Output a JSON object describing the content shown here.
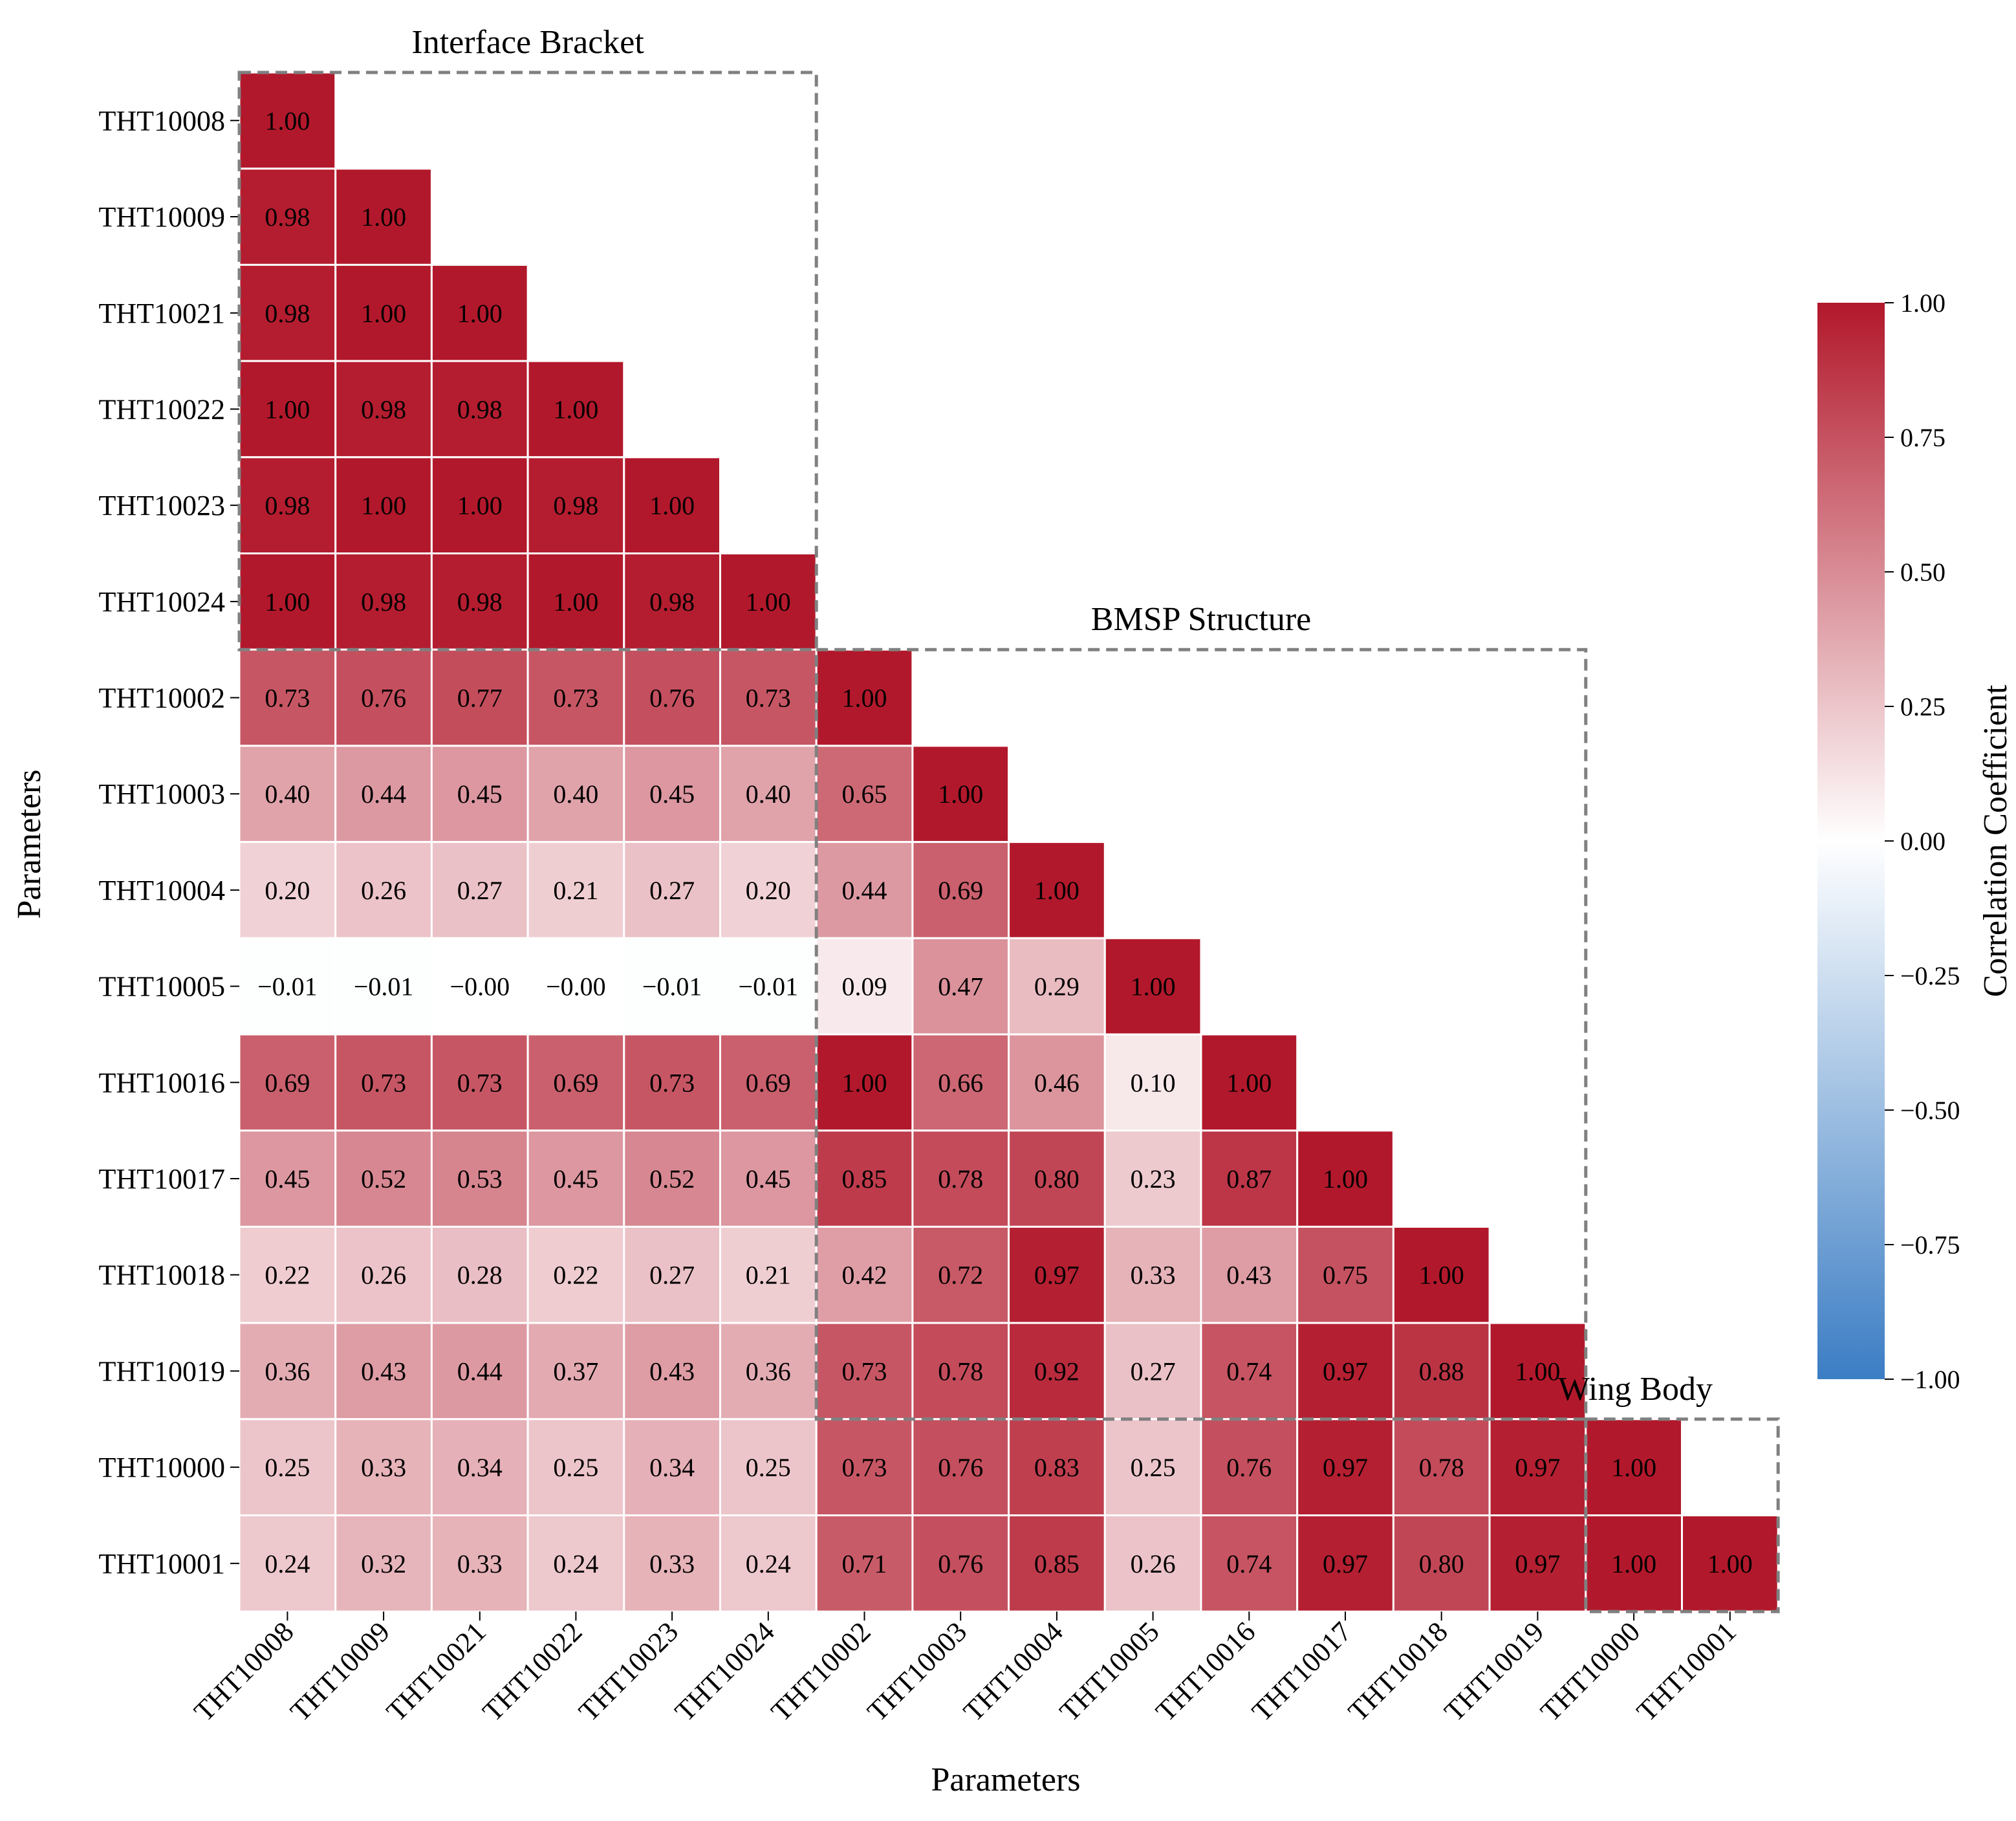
{
  "chart_data": {
    "type": "heatmap",
    "subtype": "lower-triangular correlation matrix",
    "xlabel": "Parameters",
    "ylabel": "Parameters",
    "parameters": [
      "THT10008",
      "THT10009",
      "THT10021",
      "THT10022",
      "THT10023",
      "THT10024",
      "THT10002",
      "THT10003",
      "THT10004",
      "THT10005",
      "THT10016",
      "THT10017",
      "THT10018",
      "THT10019",
      "THT10000",
      "THT10001"
    ],
    "matrix": [
      [
        1.0
      ],
      [
        0.98,
        1.0
      ],
      [
        0.98,
        1.0,
        1.0
      ],
      [
        1.0,
        0.98,
        0.98,
        1.0
      ],
      [
        0.98,
        1.0,
        1.0,
        0.98,
        1.0
      ],
      [
        1.0,
        0.98,
        0.98,
        1.0,
        0.98,
        1.0
      ],
      [
        0.73,
        0.76,
        0.77,
        0.73,
        0.76,
        0.73,
        1.0
      ],
      [
        0.4,
        0.44,
        0.45,
        0.4,
        0.45,
        0.4,
        0.65,
        1.0
      ],
      [
        0.2,
        0.26,
        0.27,
        0.21,
        0.27,
        0.2,
        0.44,
        0.69,
        1.0
      ],
      [
        -0.01,
        -0.01,
        -0.0,
        -0.0,
        -0.01,
        -0.01,
        0.09,
        0.47,
        0.29,
        1.0
      ],
      [
        0.69,
        0.73,
        0.73,
        0.69,
        0.73,
        0.69,
        1.0,
        0.66,
        0.46,
        0.1,
        1.0
      ],
      [
        0.45,
        0.52,
        0.53,
        0.45,
        0.52,
        0.45,
        0.85,
        0.78,
        0.8,
        0.23,
        0.87,
        1.0
      ],
      [
        0.22,
        0.26,
        0.28,
        0.22,
        0.27,
        0.21,
        0.42,
        0.72,
        0.97,
        0.33,
        0.43,
        0.75,
        1.0
      ],
      [
        0.36,
        0.43,
        0.44,
        0.37,
        0.43,
        0.36,
        0.73,
        0.78,
        0.92,
        0.27,
        0.74,
        0.97,
        0.88,
        1.0
      ],
      [
        0.25,
        0.33,
        0.34,
        0.25,
        0.34,
        0.25,
        0.73,
        0.76,
        0.83,
        0.25,
        0.76,
        0.97,
        0.78,
        0.97,
        1.0
      ],
      [
        0.24,
        0.32,
        0.33,
        0.24,
        0.33,
        0.24,
        0.71,
        0.76,
        0.85,
        0.26,
        0.74,
        0.97,
        0.8,
        0.97,
        1.0,
        1.0
      ]
    ],
    "groups": [
      {
        "name": "Interface Bracket",
        "start": 0,
        "end": 5
      },
      {
        "name": "BMSP Structure",
        "start": 6,
        "end": 13
      },
      {
        "name": "Wing Body",
        "start": 14,
        "end": 15
      }
    ],
    "colorbar": {
      "label": "Correlation Coefficient",
      "range": [
        -1.0,
        1.0
      ],
      "ticks": [
        1.0,
        0.75,
        0.5,
        0.25,
        0.0,
        -0.25,
        -0.5,
        -0.75,
        -1.0
      ],
      "tick_labels": [
        "1.00",
        "0.75",
        "0.50",
        "0.25",
        "0.00",
        "−0.25",
        "−0.50",
        "−0.75",
        "−1.00"
      ]
    },
    "colors": {
      "negative_end": "#3b7dc4",
      "middle": "#ffffff",
      "positive_end": "#b2182b",
      "cell_border": "#ffffff",
      "group_box": "#808080"
    }
  }
}
